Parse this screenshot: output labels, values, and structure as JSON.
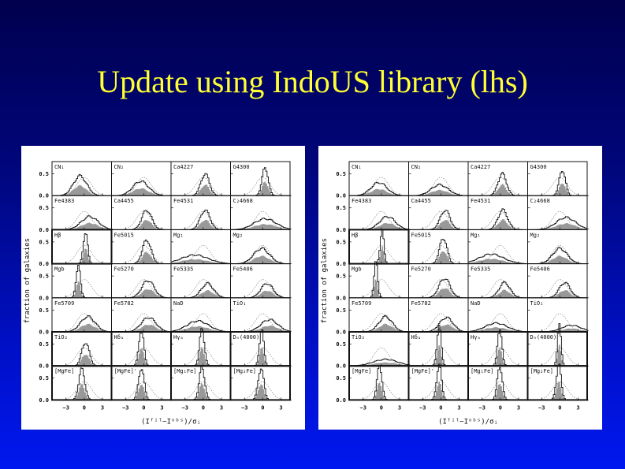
{
  "slide": {
    "title": "Update using IndoUS library (lhs)"
  },
  "figures": [
    {
      "panels": [
        "CN₁",
        "CN₂",
        "Ca4227",
        "G4300",
        "Fe4383",
        "Ca4455",
        "Fe4531",
        "C₂4668",
        "Hβ",
        "Fe5015",
        "Mg₁",
        "Mg₂",
        "Mgb",
        "Fe5270",
        "Fe5335",
        "Fe5406",
        "Fe5709",
        "Fe5782",
        "NaD",
        "TiO₁",
        "TiO₂",
        "Hδₐ",
        "Hγₐ",
        "Dₙ(4000)",
        "[MgFe]",
        "[MgFe]'",
        "[Mg₁Fe]",
        "[Mg₂Fe]"
      ],
      "y_ticks": [
        "0.0",
        "0.5"
      ],
      "x_ticks": [
        "−3",
        "0",
        "3"
      ],
      "x_label": "(Iᶠⁱᵗ−Iᵒᵇˢ)/σᵢ",
      "y_label": "fraction of galaxies"
    },
    {
      "panels": [
        "CN₁",
        "CN₂",
        "Ca4227",
        "G4300",
        "Fe4383",
        "Ca4455",
        "Fe4531",
        "C₂4668",
        "Hβ",
        "Fe5015",
        "Mg₁",
        "Mg₂",
        "Mgb",
        "Fe5270",
        "Fe5335",
        "Fe5406",
        "Fe5709",
        "Fe5782",
        "NaD",
        "TiO₁",
        "TiO₂",
        "Hδₐ",
        "Hγₐ",
        "Dₙ(4000)",
        "[MgFe]",
        "[MgFe]'",
        "[Mg₁Fe]",
        "[Mg₂Fe]"
      ],
      "y_ticks": [
        "0.0",
        "0.5"
      ],
      "x_ticks": [
        "−3",
        "0",
        "3"
      ],
      "x_label": "(Iᶠⁱᵗ−Iᵒᵇˢ)/σᵢ",
      "y_label": "fraction of galaxies"
    }
  ]
}
